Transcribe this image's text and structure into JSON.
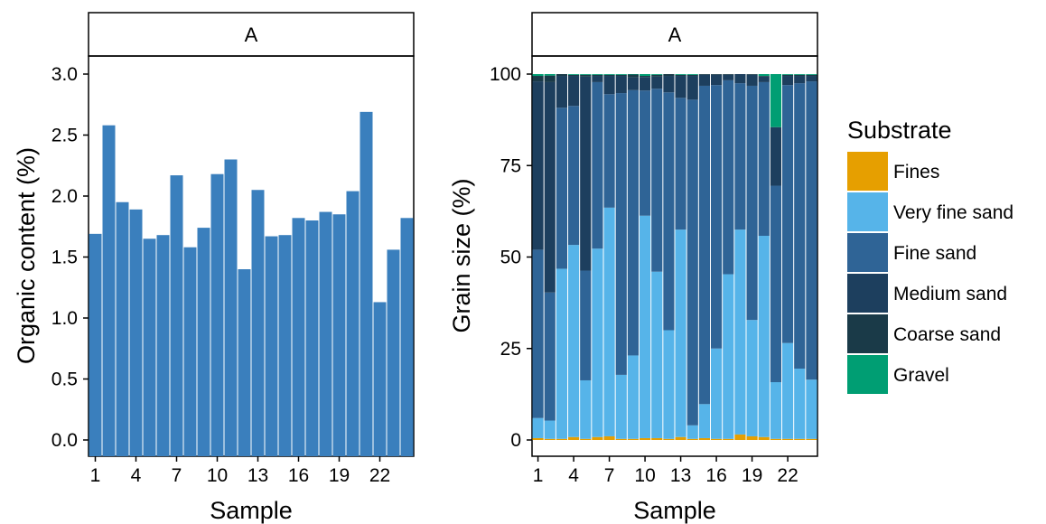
{
  "colors": {
    "organic_bar": "#3a7fbd",
    "Fines": "#e69f00",
    "Very fine sand": "#56b4e9",
    "Fine sand": "#2f6496",
    "Medium sand": "#1d3f5e",
    "Coarse sand": "#1a3a48",
    "Gravel": "#009e73"
  },
  "chart_data": [
    {
      "type": "bar",
      "facet_label": "A",
      "xlabel": "Sample",
      "ylabel": "Organic content (%)",
      "ylim": [
        0,
        3.45
      ],
      "yticks": [
        "0.0",
        "0.5",
        "1.0",
        "1.5",
        "2.0",
        "2.5",
        "3.0"
      ],
      "xticks": [
        "1",
        "4",
        "7",
        "10",
        "13",
        "16",
        "19",
        "22"
      ],
      "categories": [
        "1",
        "2",
        "3",
        "4",
        "5",
        "6",
        "7",
        "8",
        "9",
        "10",
        "11",
        "12",
        "13",
        "14",
        "15",
        "16",
        "17",
        "18",
        "19",
        "20",
        "21",
        "22",
        "23",
        "24"
      ],
      "values": [
        1.69,
        2.58,
        1.95,
        1.89,
        1.65,
        1.68,
        2.17,
        1.58,
        1.74,
        2.18,
        2.3,
        1.4,
        2.05,
        1.67,
        1.68,
        1.82,
        1.8,
        1.87,
        1.85,
        2.04,
        2.69,
        1.13,
        1.56,
        1.82
      ],
      "grid": false
    },
    {
      "type": "bar",
      "stacked": true,
      "facet_label": "A",
      "xlabel": "Sample",
      "ylabel": "Grain size (%)",
      "ylim": [
        -2,
        116
      ],
      "yticks": [
        "0",
        "25",
        "50",
        "75",
        "100"
      ],
      "xticks": [
        "1",
        "4",
        "7",
        "10",
        "13",
        "16",
        "19",
        "22"
      ],
      "categories": [
        "1",
        "2",
        "3",
        "4",
        "5",
        "6",
        "7",
        "8",
        "9",
        "10",
        "11",
        "12",
        "13",
        "14",
        "15",
        "16",
        "17",
        "18",
        "19",
        "20",
        "21",
        "22",
        "23",
        "24"
      ],
      "legend_title": "Substrate",
      "legend_position": "right",
      "grid": false,
      "series": [
        {
          "name": "Fines",
          "values": [
            0.5,
            0.3,
            0.3,
            0.8,
            0.3,
            0.8,
            1.0,
            0.3,
            0.3,
            0.5,
            0.5,
            0.3,
            0.8,
            0.3,
            0.5,
            0.3,
            0.3,
            1.5,
            1.0,
            0.8,
            0.3,
            0.3,
            0.3,
            0.3
          ]
        },
        {
          "name": "Very fine sand",
          "values": [
            5.5,
            5.0,
            46.5,
            52.5,
            16.0,
            51.5,
            62.5,
            17.5,
            22.8,
            60.8,
            45.5,
            29.7,
            56.7,
            3.7,
            9.3,
            24.7,
            45.0,
            56.0,
            31.8,
            55.0,
            15.5,
            26.2,
            19.2,
            16.2
          ]
        },
        {
          "name": "Fine sand",
          "values": [
            46.0,
            35.0,
            44.0,
            38.0,
            30.0,
            45.5,
            31.0,
            77.0,
            72.5,
            34.2,
            50.0,
            65.0,
            36.0,
            89.0,
            87.0,
            72.0,
            53.0,
            40.0,
            64.0,
            42.0,
            53.7,
            70.5,
            78.0,
            81.5
          ]
        },
        {
          "name": "Medium sand",
          "values": [
            46.0,
            57.5,
            8.7,
            8.2,
            53.0,
            1.7,
            5.0,
            4.7,
            3.5,
            3.7,
            3.3,
            4.5,
            6.0,
            6.5,
            3.0,
            2.8,
            1.5,
            2.5,
            3.0,
            1.5,
            16.0,
            2.5,
            2.0,
            1.5
          ]
        },
        {
          "name": "Coarse sand",
          "values": [
            1.5,
            1.8,
            0.5,
            0.3,
            0.5,
            0.3,
            0.3,
            0.3,
            0.8,
            0.3,
            0.5,
            0.5,
            0.3,
            0.3,
            0.2,
            0.2,
            0.2,
            0.0,
            0.2,
            0.2,
            0.0,
            0.3,
            0.3,
            0.3
          ]
        },
        {
          "name": "Gravel",
          "values": [
            0.5,
            0.4,
            0.0,
            0.2,
            0.2,
            0.2,
            0.2,
            0.2,
            0.1,
            0.5,
            0.2,
            0.0,
            0.2,
            0.2,
            0.0,
            0.0,
            0.0,
            0.0,
            0.0,
            0.5,
            14.5,
            0.2,
            0.2,
            0.2
          ]
        }
      ]
    }
  ]
}
